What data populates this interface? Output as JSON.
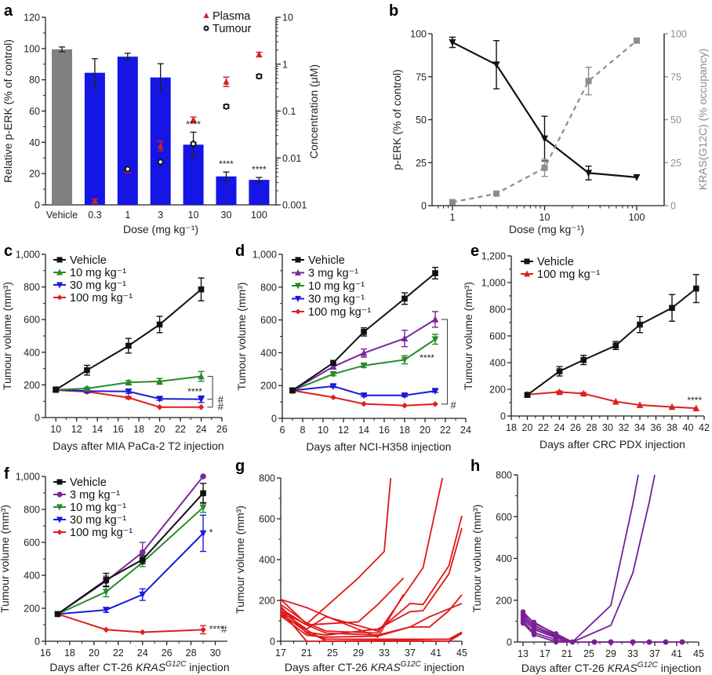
{
  "chart_data": [
    {
      "id": "a",
      "panel_label": "a",
      "type": "bar",
      "categories": [
        "Vehicle",
        "0.3",
        "1",
        "3",
        "10",
        "30",
        "100"
      ],
      "xlabel": "Dose (mg kg⁻¹)",
      "ylabel": "Relative p-ERK (% of control)",
      "ylim": [
        0,
        120
      ],
      "yticks": [
        0,
        20,
        40,
        60,
        80,
        100,
        120
      ],
      "y2label": "Concentration (μM)",
      "y2scale": "log",
      "y2lim": [
        0.001,
        10
      ],
      "y2ticks": [
        "0.001",
        "0.01",
        "0.1",
        "1",
        "10"
      ],
      "bars": {
        "values": [
          99.5,
          84.5,
          94.8,
          81.5,
          38.5,
          18.2,
          16.0
        ],
        "errors": [
          1.5,
          9,
          2.2,
          8.8,
          8,
          2.8,
          1.5
        ],
        "colors": [
          "#808080",
          "#1515e6",
          "#1515e6",
          "#1515e6",
          "#1515e6",
          "#1515e6",
          "#1515e6"
        ]
      },
      "points": [
        {
          "name": "Plasma",
          "marker": "triangle",
          "color": "#d42020",
          "categories": [
            "0.3",
            "1",
            "3",
            "10",
            "30",
            "100"
          ],
          "values": [
            0.0012,
            0.0055,
            0.018,
            0.065,
            0.42,
            1.6
          ],
          "errors_log": [
            0.04,
            0.05,
            0.1,
            0.06,
            0.1,
            0.05
          ]
        },
        {
          "name": "Tumour",
          "marker": "circle-open",
          "color": "#111111",
          "categories": [
            "1",
            "3",
            "10",
            "30",
            "100"
          ],
          "values": [
            0.0058,
            0.0082,
            0.02,
            0.125,
            0.55
          ],
          "errors_log": [
            0.03,
            0.02,
            0.03,
            0.04,
            0.04
          ]
        }
      ],
      "annotations": [
        {
          "category": "10",
          "text": "****"
        },
        {
          "category": "30",
          "text": "****"
        },
        {
          "category": "100",
          "text": "****"
        }
      ],
      "legend": {
        "placement": "top-right",
        "entries": [
          "Plasma",
          "Tumour"
        ]
      }
    },
    {
      "id": "b",
      "panel_label": "b",
      "type": "line",
      "xscale": "log",
      "x": [
        1,
        3,
        10,
        30,
        100
      ],
      "xlim": [
        0.6,
        200
      ],
      "xticks": [
        "1",
        "10",
        "100"
      ],
      "xlabel": "Dose (mg kg⁻¹)",
      "ylabel": "p-ERK (% of control)",
      "ylim": [
        0,
        100
      ],
      "yticks": [
        0,
        25,
        50,
        75,
        100
      ],
      "y2label": "KRAS(G12C) (% occupancy)",
      "y2lim": [
        0,
        100
      ],
      "y2ticks": [
        0,
        25,
        50,
        75,
        100
      ],
      "series": [
        {
          "name": "p-ERK",
          "axis": "left",
          "color": "#111111",
          "dash": false,
          "marker": "triangle-down",
          "values": [
            95,
            82,
            39,
            19,
            16.5
          ],
          "errors": [
            3,
            14,
            13,
            4,
            0
          ]
        },
        {
          "name": "KRAS(G12C) occupancy",
          "axis": "right",
          "color": "#8c8c8c",
          "dash": true,
          "marker": "square",
          "values": [
            2,
            7,
            22,
            72.5,
            96
          ],
          "errors": [
            0,
            0,
            5,
            8,
            0
          ]
        }
      ]
    },
    {
      "id": "c",
      "panel_label": "c",
      "type": "line",
      "xlabel": "Days after MIA PaCa-2 T2 injection",
      "ylabel": "Tumour volume (mm³)",
      "xlim": [
        9,
        26
      ],
      "xticks": [
        10,
        12,
        14,
        16,
        18,
        20,
        22,
        24,
        26
      ],
      "ylim": [
        0,
        1000
      ],
      "yticks": [
        "0",
        "200",
        "400",
        "600",
        "800",
        "1,000"
      ],
      "x": [
        10,
        13,
        17,
        20,
        24
      ],
      "series": [
        {
          "name": "Vehicle",
          "color": "#111111",
          "marker": "square",
          "values": [
            170,
            290,
            440,
            570,
            785
          ],
          "errors": [
            10,
            30,
            45,
            50,
            70
          ]
        },
        {
          "name": "10 mg kg⁻¹",
          "color": "#2a8a2a",
          "marker": "triangle",
          "values": [
            170,
            178,
            215,
            222,
            252
          ],
          "errors": [
            8,
            8,
            12,
            18,
            30
          ]
        },
        {
          "name": "30 mg kg⁻¹",
          "color": "#1a1add",
          "marker": "triangle-down",
          "values": [
            172,
            162,
            160,
            115,
            112
          ],
          "errors": [
            8,
            8,
            12,
            10,
            20
          ]
        },
        {
          "name": "100 mg kg⁻¹",
          "color": "#dd1f1f",
          "marker": "diamond",
          "values": [
            168,
            158,
            122,
            64,
            64
          ],
          "errors": [
            8,
            8,
            8,
            6,
            6
          ]
        }
      ],
      "annotations": [
        "****",
        "#",
        "#"
      ],
      "legend": {
        "placement": "top-left"
      }
    },
    {
      "id": "d",
      "panel_label": "d",
      "type": "line",
      "xlabel": "Days after NCI-H358 injection",
      "ylabel": "Tumour volume (mm³)",
      "xlim": [
        6,
        24
      ],
      "xticks": [
        6,
        8,
        10,
        12,
        14,
        16,
        18,
        20,
        22,
        24
      ],
      "ylim": [
        0,
        1000
      ],
      "yticks": [
        "0",
        "200",
        "400",
        "600",
        "800",
        "1,000"
      ],
      "x": [
        7,
        11,
        14,
        18,
        21
      ],
      "series": [
        {
          "name": "Vehicle",
          "color": "#111111",
          "marker": "square",
          "values": [
            170,
            338,
            527,
            730,
            885
          ],
          "errors": [
            8,
            15,
            25,
            35,
            35
          ]
        },
        {
          "name": "3 mg kg⁻¹",
          "color": "#7a2a9a",
          "marker": "triangle",
          "values": [
            170,
            315,
            398,
            487,
            603
          ],
          "errors": [
            8,
            12,
            25,
            50,
            48
          ]
        },
        {
          "name": "10 mg kg⁻¹",
          "color": "#2a8a2a",
          "marker": "triangle-down",
          "values": [
            170,
            270,
            322,
            357,
            482
          ],
          "errors": [
            8,
            10,
            12,
            25,
            30
          ]
        },
        {
          "name": "30 mg kg⁻¹",
          "color": "#1a1add",
          "marker": "triangle-down",
          "values": [
            170,
            196,
            140,
            140,
            167
          ],
          "errors": [
            8,
            8,
            8,
            8,
            8
          ]
        },
        {
          "name": "100 mg kg⁻¹",
          "color": "#dd1f1f",
          "marker": "diamond",
          "values": [
            170,
            128,
            88,
            78,
            87
          ],
          "errors": [
            5,
            5,
            5,
            5,
            5
          ]
        }
      ],
      "annotations": [
        "****",
        "#"
      ],
      "legend": {
        "placement": "top-left"
      }
    },
    {
      "id": "e",
      "panel_label": "e",
      "type": "line",
      "xlabel": "Days after CRC PDX injection",
      "ylabel": "Tumour volume (mm³)",
      "xlim": [
        18,
        42
      ],
      "xticks": [
        18,
        20,
        22,
        24,
        26,
        28,
        30,
        32,
        34,
        36,
        38,
        40,
        42
      ],
      "ylim": [
        0,
        1200
      ],
      "yticks": [
        "0",
        "200",
        "400",
        "600",
        "800",
        "1,000",
        "1,200"
      ],
      "x": [
        20,
        24,
        27,
        31,
        34,
        38,
        41
      ],
      "series": [
        {
          "name": "Vehicle",
          "color": "#111111",
          "marker": "square",
          "values": [
            158,
            335,
            420,
            528,
            685,
            810,
            955
          ],
          "errors": [
            10,
            35,
            35,
            30,
            60,
            100,
            105
          ]
        },
        {
          "name": "100 mg kg⁻¹",
          "color": "#dd1f1f",
          "marker": "triangle",
          "values": [
            160,
            180,
            168,
            108,
            82,
            68,
            58
          ],
          "errors": [
            5,
            8,
            8,
            6,
            5,
            5,
            5
          ]
        }
      ],
      "annotations": [
        "****"
      ],
      "legend": {
        "placement": "top-left"
      }
    },
    {
      "id": "f",
      "panel_label": "f",
      "type": "line",
      "xlabel_parts": [
        "Days after CT-26 ",
        "KRAS",
        "G12C",
        " injection"
      ],
      "ylabel": "Tumour volume (mm³)",
      "xlim": [
        16,
        31
      ],
      "xticks": [
        16,
        18,
        20,
        22,
        24,
        26,
        28,
        30
      ],
      "ylim": [
        0,
        1000
      ],
      "yticks": [
        "0",
        "200",
        "400",
        "600",
        "800",
        "1,000"
      ],
      "x": [
        17,
        21,
        24,
        29
      ],
      "series": [
        {
          "name": "Vehicle",
          "color": "#111111",
          "marker": "square",
          "values": [
            165,
            372,
            495,
            898
          ],
          "errors": [
            5,
            40,
            25,
            60
          ]
        },
        {
          "name": "3 mg kg⁻¹",
          "color": "#7a2a9a",
          "marker": "circle",
          "values": [
            165,
            365,
            540,
            1000
          ],
          "errors": [
            5,
            30,
            60,
            0
          ]
        },
        {
          "name": "10 mg kg⁻¹",
          "color": "#2a8a2a",
          "marker": "triangle-down",
          "values": [
            165,
            300,
            478,
            812
          ],
          "errors": [
            5,
            30,
            25,
            30
          ]
        },
        {
          "name": "30 mg kg⁻¹",
          "color": "#1a1add",
          "marker": "triangle-down",
          "values": [
            165,
            190,
            283,
            655
          ],
          "errors": [
            5,
            15,
            35,
            110
          ]
        },
        {
          "name": "100 mg kg⁻¹",
          "color": "#dd1f1f",
          "marker": "diamond",
          "values": [
            165,
            70,
            55,
            70
          ],
          "errors": [
            5,
            5,
            5,
            25
          ]
        }
      ],
      "annotations": [
        "*",
        "****",
        "#"
      ],
      "legend": {
        "placement": "top-left"
      }
    },
    {
      "id": "g",
      "panel_label": "g",
      "type": "line",
      "xlabel_parts": [
        "Days after CT-26 ",
        "KRAS",
        "G12C",
        " injection"
      ],
      "ylabel": "Tumour volume (mm³)",
      "xlim": [
        17,
        45
      ],
      "xticks": [
        17,
        21,
        25,
        29,
        33,
        37,
        41,
        45
      ],
      "ylim": [
        0,
        800
      ],
      "yticks": [
        "0",
        "200",
        "400",
        "600",
        "800"
      ],
      "color": "#e01818",
      "individuals": [
        {
          "x": [
            17,
            21,
            29,
            33,
            34
          ],
          "y": [
            205,
            85,
            310,
            440,
            800
          ]
        },
        {
          "x": [
            17,
            21,
            24,
            32,
            39,
            42
          ],
          "y": [
            180,
            90,
            50,
            40,
            360,
            800
          ]
        },
        {
          "x": [
            17,
            21,
            29,
            32,
            36
          ],
          "y": [
            160,
            80,
            95,
            180,
            310
          ]
        },
        {
          "x": [
            17,
            21,
            24,
            32,
            37,
            39,
            43,
            45
          ],
          "y": [
            145,
            60,
            120,
            50,
            185,
            180,
            370,
            615
          ]
        },
        {
          "x": [
            17,
            21,
            24,
            32,
            37,
            39,
            43,
            45
          ],
          "y": [
            135,
            45,
            30,
            60,
            145,
            150,
            330,
            555
          ]
        },
        {
          "x": [
            17,
            21,
            25,
            32,
            36
          ],
          "y": [
            205,
            165,
            110,
            20,
            230
          ]
        },
        {
          "x": [
            17,
            21,
            24,
            32,
            37,
            40,
            45
          ],
          "y": [
            150,
            80,
            40,
            30,
            70,
            120,
            185
          ]
        },
        {
          "x": [
            17,
            21,
            24,
            32,
            37,
            40,
            43,
            45
          ],
          "y": [
            125,
            30,
            20,
            25,
            70,
            70,
            150,
            228
          ]
        },
        {
          "x": [
            17,
            21,
            24,
            32,
            43,
            45
          ],
          "y": [
            170,
            40,
            10,
            10,
            10,
            45
          ]
        },
        {
          "x": [
            17,
            21,
            24,
            43,
            45
          ],
          "y": [
            150,
            0,
            0,
            0,
            38
          ]
        },
        {
          "x": [
            17,
            24,
            43,
            45
          ],
          "y": [
            130,
            0,
            10,
            40
          ]
        }
      ]
    },
    {
      "id": "h",
      "panel_label": "h",
      "type": "line",
      "xlabel_parts": [
        "Days after CT-26 ",
        "KRAS",
        "G12C",
        " injection"
      ],
      "ylabel": "Tumour volume (mm³)",
      "xlim": [
        12,
        45
      ],
      "xticks": [
        13,
        17,
        21,
        25,
        29,
        33,
        37,
        41,
        45
      ],
      "ylim": [
        0,
        800
      ],
      "yticks": [
        "0",
        "200",
        "400",
        "600",
        "800"
      ],
      "color": "#7a1f96",
      "individuals": [
        {
          "x": [
            13,
            15,
            19,
            22,
            29,
            33,
            34
          ],
          "y": [
            145,
            90,
            40,
            0,
            175,
            660,
            800
          ]
        },
        {
          "x": [
            13,
            15,
            19,
            22,
            29,
            33,
            36,
            37
          ],
          "y": [
            130,
            80,
            30,
            0,
            80,
            330,
            670,
            800
          ]
        },
        {
          "x": [
            13,
            15,
            19,
            22,
            26,
            29,
            33,
            36,
            39,
            42
          ],
          "y": [
            120,
            70,
            25,
            0,
            0,
            0,
            0,
            0,
            0,
            0
          ]
        },
        {
          "x": [
            13,
            15,
            19,
            22
          ],
          "y": [
            110,
            60,
            20,
            0
          ]
        },
        {
          "x": [
            13,
            15,
            19,
            22
          ],
          "y": [
            100,
            45,
            10,
            0
          ]
        },
        {
          "x": [
            13,
            15,
            19,
            22
          ],
          "y": [
            90,
            35,
            0,
            0
          ]
        },
        {
          "x": [
            13,
            15,
            19,
            22
          ],
          "y": [
            135,
            95,
            35,
            0
          ]
        }
      ],
      "markers_on_zero": [
        26,
        29,
        33,
        36,
        39,
        42
      ]
    }
  ]
}
